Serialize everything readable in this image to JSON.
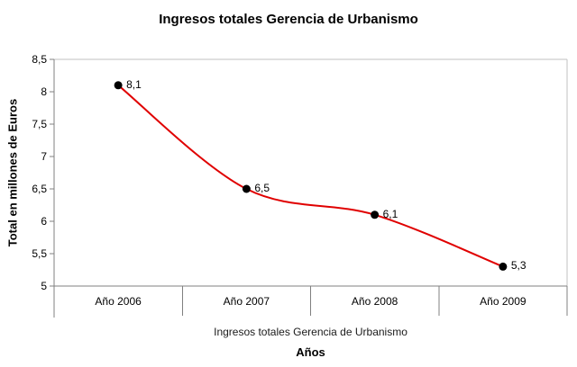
{
  "title": "Ingresos totales Gerencia de Urbanismo",
  "colors": {
    "line": "#e00000",
    "marker": "#000000",
    "axis": "#808080",
    "plot_border": "#c0c0c0",
    "text": "#000000"
  },
  "chart_data": {
    "type": "line",
    "smoothed": true,
    "title": "Ingresos totales Gerencia de Urbanismo",
    "xlabel": "Años",
    "ylabel": "Total en millones de Euros",
    "series_name": "Ingresos totales Gerencia de Urbanismo",
    "categories": [
      "Año 2006",
      "Año 2007",
      "Año 2008",
      "Año 2009"
    ],
    "values": [
      8.1,
      6.5,
      6.1,
      5.3
    ],
    "point_labels": [
      "8,1",
      "6,5",
      "6,1",
      "5,3"
    ],
    "ylim": [
      5,
      8.5
    ],
    "ytick_step": 0.5,
    "ytick_labels_top_to_bottom": [
      "8,5",
      "8",
      "7,5",
      "7",
      "6,5",
      "6",
      "5,5",
      "5"
    ],
    "grid": false,
    "legend_position": "bottom",
    "marker_style": "filled-circle"
  }
}
